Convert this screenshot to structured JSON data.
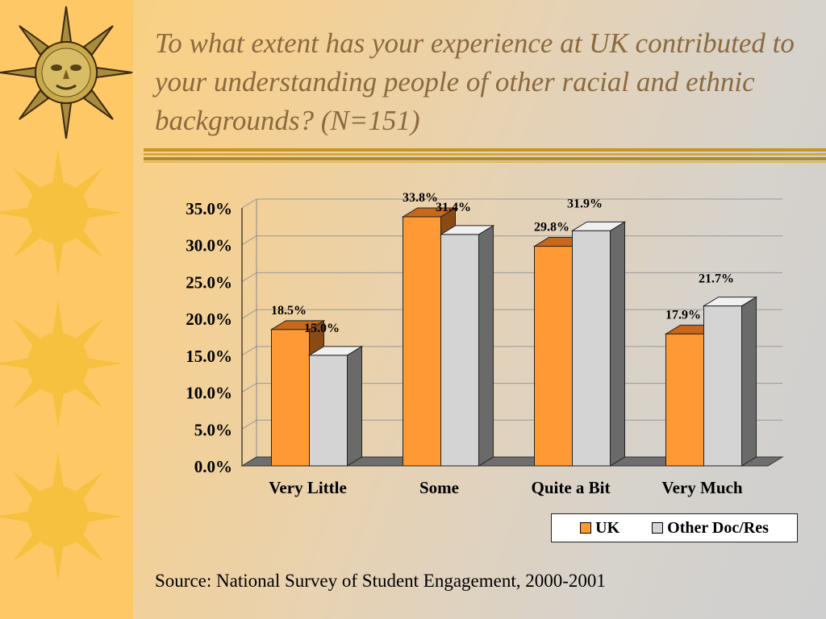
{
  "page": {
    "title": "To what extent has your experience at UK contributed to your understanding people of other racial and ethnic backgrounds?  (N=151)",
    "source": "Source:  National Survey of Student Engagement, 2000-2001"
  },
  "colors": {
    "uk": "#ff9933",
    "other": "#d4d4d4",
    "left_band": "#ffc866",
    "sun": "#f5c13e",
    "title_text": "#8a6a3e"
  },
  "decorations": [
    "sun-face-icon",
    "sun-icon",
    "sun-icon",
    "sun-icon"
  ],
  "chart_data": {
    "type": "bar",
    "categories": [
      "Very Little",
      "Some",
      "Quite a Bit",
      "Very Much"
    ],
    "series": [
      {
        "name": "UK",
        "values": [
          18.5,
          33.8,
          29.8,
          17.9
        ],
        "labels": [
          "18.5%",
          "33.8%",
          "29.8%",
          "17.9%"
        ]
      },
      {
        "name": "Other Doc/Res",
        "values": [
          15.0,
          31.4,
          31.9,
          21.7
        ],
        "labels": [
          "15.0%",
          "31.4%",
          "31.9%",
          "21.7%"
        ]
      }
    ],
    "yticks": [
      "0.0%",
      "5.0%",
      "10.0%",
      "15.0%",
      "20.0%",
      "25.0%",
      "30.0%",
      "35.0%"
    ],
    "ylim": [
      0,
      35
    ],
    "grid": true,
    "three_d": true,
    "legend_position": "bottom-right",
    "xlabel": "",
    "ylabel": ""
  }
}
